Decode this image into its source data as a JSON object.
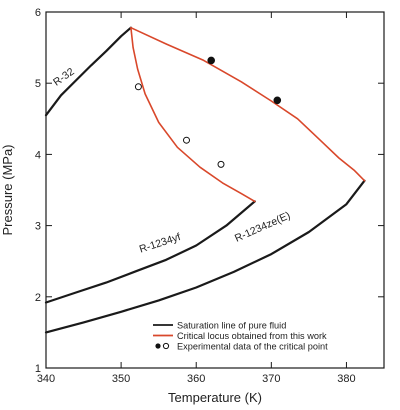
{
  "chart_data": {
    "type": "line",
    "title": "",
    "xlabel": "Temperature (K)",
    "ylabel": "Pressure (MPa)",
    "xlim": [
      340,
      385
    ],
    "ylim": [
      1,
      6
    ],
    "xticks": [
      340,
      350,
      360,
      370,
      380
    ],
    "yticks": [
      1,
      2,
      3,
      4,
      5,
      6
    ],
    "grid": false,
    "legend_position": "bottom-right",
    "colors": {
      "saturation": "#1a1a1a",
      "critical_locus": "#d9482b",
      "points": "#111111"
    },
    "series": [
      {
        "name": "R-32",
        "role": "saturation",
        "x": [
          340.0,
          342.0,
          344.0,
          346.0,
          348.0,
          350.0,
          351.3
        ],
        "y": [
          4.55,
          4.83,
          5.04,
          5.25,
          5.45,
          5.66,
          5.78
        ]
      },
      {
        "name": "R-1234yf",
        "role": "saturation",
        "x": [
          340.0,
          344.0,
          348.0,
          352.0,
          356.0,
          360.0,
          364.0,
          367.8
        ],
        "y": [
          1.92,
          2.06,
          2.2,
          2.36,
          2.52,
          2.72,
          3.0,
          3.34
        ]
      },
      {
        "name": "R-1234ze(E)",
        "role": "saturation",
        "x": [
          340.0,
          345.0,
          350.0,
          355.0,
          360.0,
          365.0,
          370.0,
          375.0,
          380.0,
          382.4
        ],
        "y": [
          1.5,
          1.64,
          1.79,
          1.95,
          2.13,
          2.35,
          2.6,
          2.91,
          3.3,
          3.63
        ]
      },
      {
        "name": "critical locus R-32/R-1234yf",
        "role": "critical_locus",
        "x": [
          351.3,
          351.6,
          352.2,
          353.2,
          355.0,
          357.5,
          360.5,
          363.5,
          366.0,
          367.8
        ],
        "y": [
          5.78,
          5.5,
          5.2,
          4.85,
          4.45,
          4.1,
          3.82,
          3.6,
          3.45,
          3.34
        ]
      },
      {
        "name": "critical locus R-32/R-1234ze(E)",
        "role": "critical_locus",
        "x": [
          351.3,
          356.0,
          361.0,
          366.0,
          370.0,
          373.5,
          376.5,
          379.0,
          381.0,
          382.4
        ],
        "y": [
          5.78,
          5.55,
          5.32,
          5.02,
          4.75,
          4.5,
          4.2,
          3.95,
          3.78,
          3.63
        ]
      }
    ],
    "points": [
      {
        "x": 352.3,
        "y": 4.95,
        "filled": false
      },
      {
        "x": 358.7,
        "y": 4.2,
        "filled": false
      },
      {
        "x": 363.3,
        "y": 3.86,
        "filled": false
      },
      {
        "x": 362.0,
        "y": 5.32,
        "filled": true
      },
      {
        "x": 370.8,
        "y": 4.76,
        "filled": true
      }
    ],
    "curve_labels": [
      {
        "text": "R-32",
        "x": 342.6,
        "y": 5.05,
        "angle": -35
      },
      {
        "text": "R-1234yf",
        "x": 355.3,
        "y": 2.71,
        "angle": -18
      },
      {
        "text": "R-1234ze(E)",
        "x": 369.0,
        "y": 2.94,
        "angle": -24
      }
    ],
    "legend": [
      {
        "label": "Saturation line of pure fluid",
        "symbol": "line",
        "color": "#1a1a1a"
      },
      {
        "label": "Critical locus obtained from this work",
        "symbol": "line",
        "color": "#d9482b"
      },
      {
        "label": "Experimental data of the critical point",
        "symbol": "points"
      }
    ]
  }
}
